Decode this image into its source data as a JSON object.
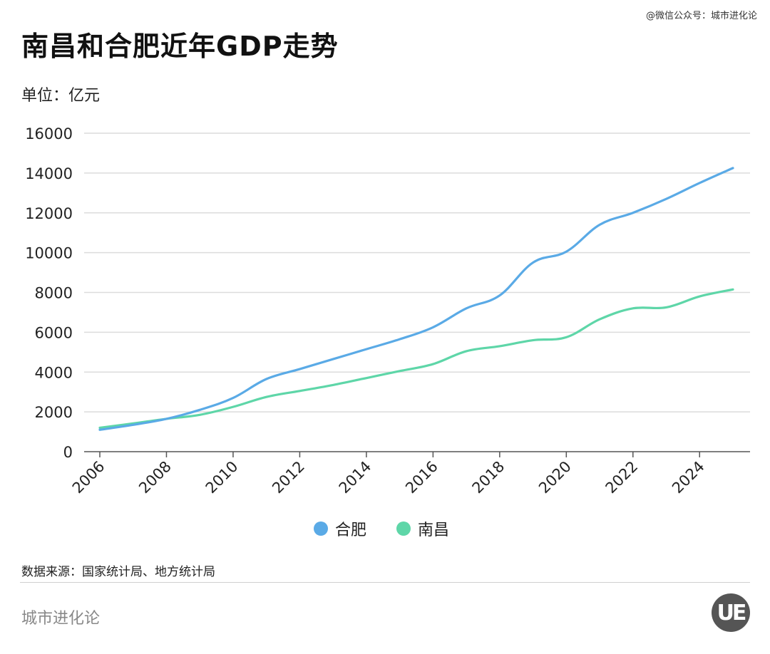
{
  "header": {
    "credit": "@微信公众号：城市进化论",
    "title": "南昌和合肥近年GDP走势",
    "unit": "单位：亿元"
  },
  "colors": {
    "hefei": "#5aaae6",
    "nanchang": "#5ed6a8",
    "grid": "#dcdcdc",
    "axis": "#555555"
  },
  "chart_data": {
    "type": "line",
    "title": "南昌和合肥近年GDP走势",
    "ylabel": "单位：亿元",
    "xlabel": "",
    "ylim": [
      0,
      16000
    ],
    "yticks": [
      0,
      2000,
      4000,
      6000,
      8000,
      10000,
      12000,
      14000,
      16000
    ],
    "xticks": [
      "2006",
      "2008",
      "2010",
      "2012",
      "2014",
      "2016",
      "2018",
      "2020",
      "2022",
      "2024"
    ],
    "x": [
      2006,
      2007,
      2008,
      2009,
      2010,
      2011,
      2012,
      2013,
      2014,
      2015,
      2016,
      2017,
      2018,
      2019,
      2020,
      2021,
      2022,
      2023,
      2024,
      2025
    ],
    "series": [
      {
        "name": "合肥",
        "values": [
          1100,
          1350,
          1650,
          2100,
          2700,
          3650,
          4150,
          4650,
          5150,
          5650,
          6250,
          7200,
          7850,
          9500,
          10050,
          11400,
          12000,
          12700,
          13500,
          14250
        ]
      },
      {
        "name": "南昌",
        "values": [
          1200,
          1420,
          1650,
          1850,
          2250,
          2750,
          3050,
          3350,
          3700,
          4050,
          4400,
          5050,
          5300,
          5600,
          5750,
          6650,
          7200,
          7250,
          7800,
          8150
        ]
      }
    ],
    "legend_position": "bottom-center"
  },
  "legend": {
    "hefei": "合肥",
    "nanchang": "南昌"
  },
  "footer": {
    "source": "数据来源：国家统计局、地方统计局",
    "brand": "城市进化论",
    "logo": "UE"
  }
}
